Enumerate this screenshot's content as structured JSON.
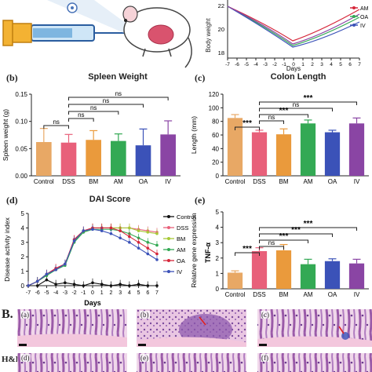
{
  "colors": {
    "control": "#E8A865",
    "dss": "#E8607A",
    "bm": "#EA9A3C",
    "am": "#33A954",
    "oa": "#3B52B8",
    "iv": "#8A45A4"
  },
  "icons": [
    "syringe-icon",
    "mouse-icon",
    "virus-icon"
  ],
  "panel_a": {
    "ylabel": "Body weight",
    "xlabel": "Days",
    "y_ticks": [
      "22",
      "20",
      "18"
    ],
    "x_ticks": [
      "-7",
      "-6",
      "-5",
      "-4",
      "-3",
      "-2",
      "-1",
      "0",
      "1",
      "2",
      "3",
      "4",
      "5",
      "6",
      "7"
    ],
    "legend": [
      "AM",
      "OA",
      "IV"
    ]
  },
  "panel_b": {
    "letter": "(b)"
  },
  "panel_c": {
    "letter": "(c)"
  },
  "panel_d": {
    "letter": "(d)"
  },
  "panel_e": {
    "letter": "(e)"
  },
  "section_b": {
    "label": "B.",
    "stain": "H&E"
  },
  "histology": {
    "labels": [
      "(a)",
      "(b)",
      "(c)",
      "(d)",
      "(e)",
      "(f)"
    ]
  },
  "chart_data": [
    {
      "id": "spleen",
      "type": "bar",
      "title": "Spleen Weight",
      "xlabel": "",
      "ylabel": "Spleen weight (g)",
      "categories": [
        "Control",
        "DSS",
        "BM",
        "AM",
        "OA",
        "IV"
      ],
      "values": [
        0.062,
        0.061,
        0.066,
        0.064,
        0.056,
        0.076
      ],
      "errors": [
        0.025,
        0.015,
        0.017,
        0.013,
        0.03,
        0.025
      ],
      "ylim": [
        0,
        0.15
      ],
      "y_ticks": [
        "0.00",
        "0.05",
        "0.10",
        "0.15"
      ],
      "significance": [
        {
          "from": 0,
          "to": 1,
          "label": "ns"
        },
        {
          "from": 1,
          "to": 2,
          "label": "ns"
        },
        {
          "from": 1,
          "to": 3,
          "label": "ns"
        },
        {
          "from": 1,
          "to": 4,
          "label": "ns"
        },
        {
          "from": 1,
          "to": 5,
          "label": "ns"
        }
      ]
    },
    {
      "id": "colon",
      "type": "bar",
      "title": "Colon Length",
      "xlabel": "",
      "ylabel": "Length (mm)",
      "categories": [
        "Control",
        "DSS",
        "BM",
        "AM",
        "OA",
        "IV"
      ],
      "values": [
        85,
        64,
        61,
        77,
        64,
        77
      ],
      "errors": [
        5,
        3,
        8,
        5,
        3,
        8
      ],
      "ylim": [
        0,
        120
      ],
      "y_ticks": [
        "0",
        "20",
        "40",
        "60",
        "80",
        "100",
        "120"
      ],
      "significance": [
        {
          "from": 0,
          "to": 1,
          "label": "***"
        },
        {
          "from": 1,
          "to": 2,
          "label": "ns"
        },
        {
          "from": 1,
          "to": 3,
          "label": "***"
        },
        {
          "from": 1,
          "to": 4,
          "label": "ns"
        },
        {
          "from": 1,
          "to": 5,
          "label": "***"
        }
      ]
    },
    {
      "id": "dai",
      "type": "line",
      "title": "DAI Score",
      "xlabel": "Days",
      "ylabel": "Disease activity index",
      "x": [
        -7,
        -6,
        -5,
        -4,
        -3,
        -2,
        -1,
        0,
        1,
        2,
        3,
        4,
        5,
        6,
        7
      ],
      "x_ticks": [
        "-7",
        "-6",
        "-5",
        "-4",
        "-3",
        "-2",
        "-1",
        "0",
        "1",
        "2",
        "3",
        "4",
        "5",
        "6",
        "7"
      ],
      "ylim": [
        0,
        5
      ],
      "y_ticks": [
        "0",
        "1",
        "2",
        "3",
        "4",
        "5"
      ],
      "legend_position": "right",
      "series": [
        {
          "name": "Control",
          "color": "#111111",
          "values": [
            0,
            0,
            0.4,
            0.1,
            0.2,
            0.1,
            0,
            0.2,
            0.1,
            0,
            0.1,
            0,
            0.1,
            0,
            0
          ]
        },
        {
          "name": "DSS",
          "color": "#E8607A",
          "values": [
            0,
            0.3,
            0.8,
            1.2,
            1.5,
            3.2,
            3.8,
            4.0,
            4.0,
            4.0,
            4.0,
            4.0,
            3.9,
            3.8,
            3.7
          ]
        },
        {
          "name": "BM",
          "color": "#a7c936",
          "values": [
            0,
            0.3,
            0.8,
            1.1,
            1.5,
            3.1,
            3.7,
            4.0,
            4.0,
            4.0,
            4.0,
            4.0,
            3.8,
            3.7,
            3.6
          ]
        },
        {
          "name": "AM",
          "color": "#33A954",
          "values": [
            0,
            0.3,
            0.7,
            1.1,
            1.4,
            3.0,
            3.7,
            3.9,
            3.9,
            3.9,
            3.8,
            3.6,
            3.3,
            3.0,
            2.8
          ]
        },
        {
          "name": "OA",
          "color": "#d6263a",
          "values": [
            0,
            0.3,
            0.8,
            1.2,
            1.5,
            3.2,
            3.8,
            4.0,
            4.0,
            4.0,
            3.8,
            3.4,
            3.0,
            2.6,
            2.2
          ]
        },
        {
          "name": "IV",
          "color": "#3B52B8",
          "values": [
            0,
            0.3,
            0.8,
            1.1,
            1.5,
            3.1,
            3.8,
            3.9,
            3.8,
            3.6,
            3.3,
            3.0,
            2.6,
            2.2,
            1.8
          ]
        }
      ]
    },
    {
      "id": "tnf",
      "type": "bar",
      "title": "TNF-α",
      "xlabel": "",
      "ylabel": "Relative gene expression",
      "categories": [
        "Control",
        "DSS",
        "BM",
        "AM",
        "OA",
        "IV"
      ],
      "values": [
        1.05,
        2.45,
        2.5,
        1.6,
        1.8,
        1.65
      ],
      "errors": [
        0.12,
        0.22,
        0.38,
        0.32,
        0.15,
        0.27
      ],
      "ylim": [
        0,
        5
      ],
      "y_ticks": [
        "0",
        "1",
        "2",
        "3",
        "4",
        "5"
      ],
      "significance": [
        {
          "from": 0,
          "to": 1,
          "label": "***"
        },
        {
          "from": 1,
          "to": 2,
          "label": "ns"
        },
        {
          "from": 1,
          "to": 3,
          "label": "***"
        },
        {
          "from": 1,
          "to": 4,
          "label": "***"
        },
        {
          "from": 1,
          "to": 5,
          "label": "***"
        }
      ]
    }
  ]
}
